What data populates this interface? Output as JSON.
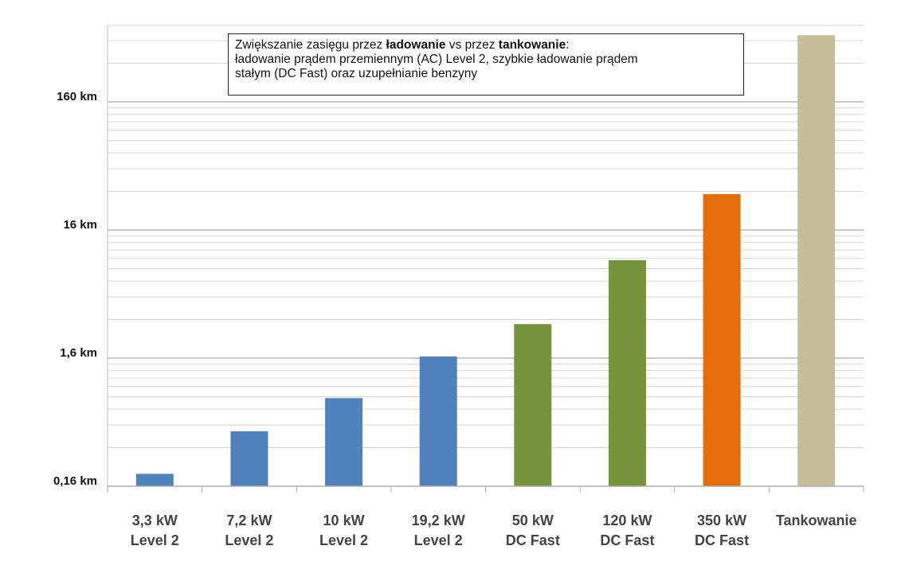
{
  "chart_data": {
    "type": "bar",
    "scale": "log",
    "title_parts": {
      "prefix": "Zwiększanie zasięgu przez ",
      "bold1": "ładowanie",
      "mid": " vs przez ",
      "bold2": "tankowanie",
      "suffix": ":",
      "line2": "ładowanie prądem przemiennym (AC) Level 2, szybkie ładowanie prądem",
      "line3": "stałym (DC Fast) oraz uzupełnianie benzyny"
    },
    "y_ticks": [
      {
        "value": 0.16,
        "label": "0,16 km"
      },
      {
        "value": 1.6,
        "label": "1,6 km"
      },
      {
        "value": 16,
        "label": "16 km"
      },
      {
        "value": 160,
        "label": "160 km"
      }
    ],
    "ylim": [
      0.16,
      550
    ],
    "grid": true,
    "categories": [
      {
        "line1": "3,3 kW",
        "line2": "Level 2"
      },
      {
        "line1": "7,2 kW",
        "line2": "Level 2"
      },
      {
        "line1": "10 kW",
        "line2": "Level 2"
      },
      {
        "line1": "19,2 kW",
        "line2": "Level 2"
      },
      {
        "line1": "50 kW",
        "line2": "DC Fast"
      },
      {
        "line1": "120 kW",
        "line2": "DC Fast"
      },
      {
        "line1": "350 kW",
        "line2": "DC Fast"
      },
      {
        "line1": "Tankowanie",
        "line2": ""
      }
    ],
    "values": [
      0.2,
      0.43,
      0.78,
      1.65,
      2.95,
      9.3,
      30.5,
      530
    ],
    "colors": [
      "#4f81bd",
      "#4f81bd",
      "#4f81bd",
      "#4f81bd",
      "#77933c",
      "#77933c",
      "#e46c0a",
      "#c4bd97"
    ]
  }
}
